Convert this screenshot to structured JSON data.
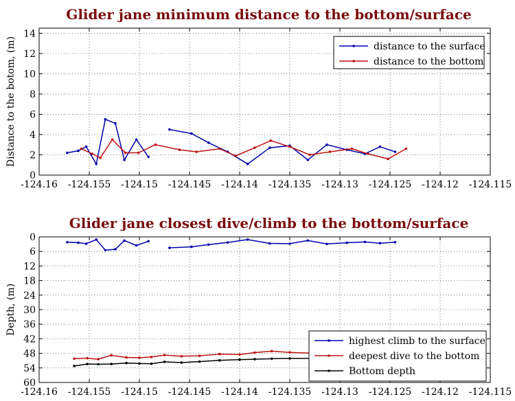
{
  "chart_data": [
    {
      "type": "line",
      "title": "Glider jane minimum distance to the bottom/surface",
      "xlabel": "",
      "ylabel": "Distance to the botom, (m)",
      "xlim": [
        -124.16,
        -124.115
      ],
      "ylim": [
        0,
        14.5
      ],
      "xticks": [
        -124.16,
        -124.155,
        -124.15,
        -124.145,
        -124.14,
        -124.135,
        -124.13,
        -124.125,
        -124.12,
        -124.115
      ],
      "xtick_labels": [
        "-124.16",
        "-124.155",
        "-124.15",
        "-124.145",
        "-124.14",
        "-124.135",
        "-124.13",
        "-124.125",
        "-124.12",
        "-124.115"
      ],
      "yticks": [
        0,
        2,
        4,
        6,
        8,
        10,
        12,
        14
      ],
      "ytick_labels": [
        "0",
        "2",
        "4",
        "6",
        "8",
        "10",
        "12",
        "14"
      ],
      "y_inverted": false,
      "grid": true,
      "legend": "top-right",
      "series": [
        {
          "name": "distance to the surface",
          "color": "#0000aa",
          "segments": [
            [
              [
                -124.1572,
                2.2
              ],
              [
                -124.1561,
                2.4
              ],
              [
                -124.1553,
                2.8
              ],
              [
                -124.1543,
                1.1
              ],
              [
                -124.1534,
                5.5
              ],
              [
                -124.1524,
                5.1
              ],
              [
                -124.1515,
                1.5
              ],
              [
                -124.1503,
                3.5
              ],
              [
                -124.1491,
                1.8
              ]
            ],
            [
              [
                -124.147,
                4.5
              ],
              [
                -124.1448,
                4.1
              ],
              [
                -124.1431,
                3.2
              ],
              [
                -124.1412,
                2.3
              ],
              [
                -124.1392,
                1.1
              ],
              [
                -124.137,
                2.7
              ],
              [
                -124.135,
                2.9
              ],
              [
                -124.1332,
                1.5
              ],
              [
                -124.1313,
                3.0
              ],
              [
                -124.1293,
                2.5
              ],
              [
                -124.1275,
                2.1
              ],
              [
                -124.126,
                2.8
              ],
              [
                -124.1245,
                2.3
              ]
            ]
          ]
        },
        {
          "name": "distance to the bottom",
          "color": "#bb1111",
          "segments": [
            [
              [
                -124.1558,
                2.6
              ],
              [
                -124.1547,
                2.1
              ],
              [
                -124.1539,
                1.7
              ],
              [
                -124.1527,
                3.5
              ],
              [
                -124.1514,
                2.2
              ],
              [
                -124.1501,
                2.2
              ],
              [
                -124.1484,
                3.0
              ],
              [
                -124.146,
                2.5
              ],
              [
                -124.1443,
                2.3
              ],
              [
                -124.142,
                2.6
              ],
              [
                -124.1404,
                1.9
              ],
              [
                -124.1385,
                2.7
              ],
              [
                -124.1369,
                3.4
              ],
              [
                -124.135,
                2.8
              ],
              [
                -124.133,
                2.0
              ],
              [
                -124.131,
                2.3
              ],
              [
                -124.1288,
                2.6
              ],
              [
                -124.1272,
                2.1
              ],
              [
                -124.1252,
                1.6
              ],
              [
                -124.1234,
                2.6
              ]
            ]
          ]
        }
      ]
    },
    {
      "type": "line",
      "title": "Glider jane closest dive/climb to the bottom/surface",
      "xlabel": "",
      "ylabel": "Depth, (m)",
      "xlim": [
        -124.16,
        -124.115
      ],
      "ylim": [
        60,
        0
      ],
      "xticks": [
        -124.16,
        -124.155,
        -124.15,
        -124.145,
        -124.14,
        -124.135,
        -124.13,
        -124.125,
        -124.12,
        -124.115
      ],
      "xtick_labels": [
        "-124.16",
        "-124.155",
        "-124.15",
        "-124.145",
        "-124.14",
        "-124.135",
        "-124.13",
        "-124.125",
        "-124.12",
        "-124.115"
      ],
      "yticks": [
        0,
        6,
        12,
        18,
        24,
        30,
        36,
        42,
        48,
        54,
        60
      ],
      "ytick_labels": [
        "0",
        "6",
        "12",
        "18",
        "24",
        "30",
        "36",
        "42",
        "48",
        "54",
        "60"
      ],
      "y_inverted": true,
      "grid": true,
      "legend": "bottom-right",
      "series": [
        {
          "name": "highest climb to the surface",
          "color": "#0000aa",
          "segments": [
            [
              [
                -124.1572,
                2.2
              ],
              [
                -124.1561,
                2.4
              ],
              [
                -124.1553,
                2.8
              ],
              [
                -124.1543,
                1.1
              ],
              [
                -124.1534,
                5.5
              ],
              [
                -124.1524,
                5.1
              ],
              [
                -124.1515,
                1.5
              ],
              [
                -124.1503,
                3.5
              ],
              [
                -124.1491,
                1.8
              ]
            ],
            [
              [
                -124.147,
                4.5
              ],
              [
                -124.1448,
                4.1
              ],
              [
                -124.1431,
                3.2
              ],
              [
                -124.1412,
                2.3
              ],
              [
                -124.1392,
                1.1
              ],
              [
                -124.137,
                2.7
              ],
              [
                -124.135,
                2.8
              ],
              [
                -124.1332,
                1.5
              ],
              [
                -124.1313,
                2.9
              ],
              [
                -124.1293,
                2.4
              ],
              [
                -124.1275,
                2.1
              ],
              [
                -124.126,
                2.6
              ],
              [
                -124.1245,
                2.2
              ]
            ]
          ]
        },
        {
          "name": "deepest dive to the bottom",
          "color": "#bb1111",
          "segments": [
            [
              [
                -124.1565,
                50.2
              ],
              [
                -124.1552,
                50.0
              ],
              [
                -124.1541,
                50.4
              ],
              [
                -124.1528,
                48.8
              ],
              [
                -124.1513,
                49.7
              ],
              [
                -124.15,
                49.8
              ],
              [
                -124.1488,
                49.5
              ],
              [
                -124.1475,
                48.7
              ],
              [
                -124.1458,
                49.2
              ],
              [
                -124.144,
                49.0
              ],
              [
                -124.142,
                48.3
              ],
              [
                -124.14,
                48.5
              ],
              [
                -124.1385,
                47.7
              ],
              [
                -124.1368,
                47.1
              ],
              [
                -124.135,
                47.6
              ],
              [
                -124.133,
                47.9
              ],
              [
                -124.131,
                47.8
              ],
              [
                -124.129,
                47.7
              ]
            ]
          ]
        },
        {
          "name": "Bottom depth",
          "color": "#000000",
          "segments": [
            [
              [
                -124.1565,
                53.2
              ],
              [
                -124.1552,
                52.4
              ],
              [
                -124.1541,
                52.5
              ],
              [
                -124.1528,
                52.4
              ],
              [
                -124.1513,
                52.0
              ],
              [
                -124.15,
                52.2
              ],
              [
                -124.1488,
                52.3
              ],
              [
                -124.1475,
                51.5
              ],
              [
                -124.1458,
                51.8
              ],
              [
                -124.144,
                51.4
              ],
              [
                -124.142,
                50.9
              ],
              [
                -124.14,
                50.6
              ],
              [
                -124.1385,
                50.4
              ],
              [
                -124.1368,
                50.2
              ],
              [
                -124.135,
                50.1
              ],
              [
                -124.133,
                50.1
              ],
              [
                -124.131,
                49.9
              ],
              [
                -124.129,
                49.8
              ]
            ]
          ]
        }
      ]
    }
  ]
}
